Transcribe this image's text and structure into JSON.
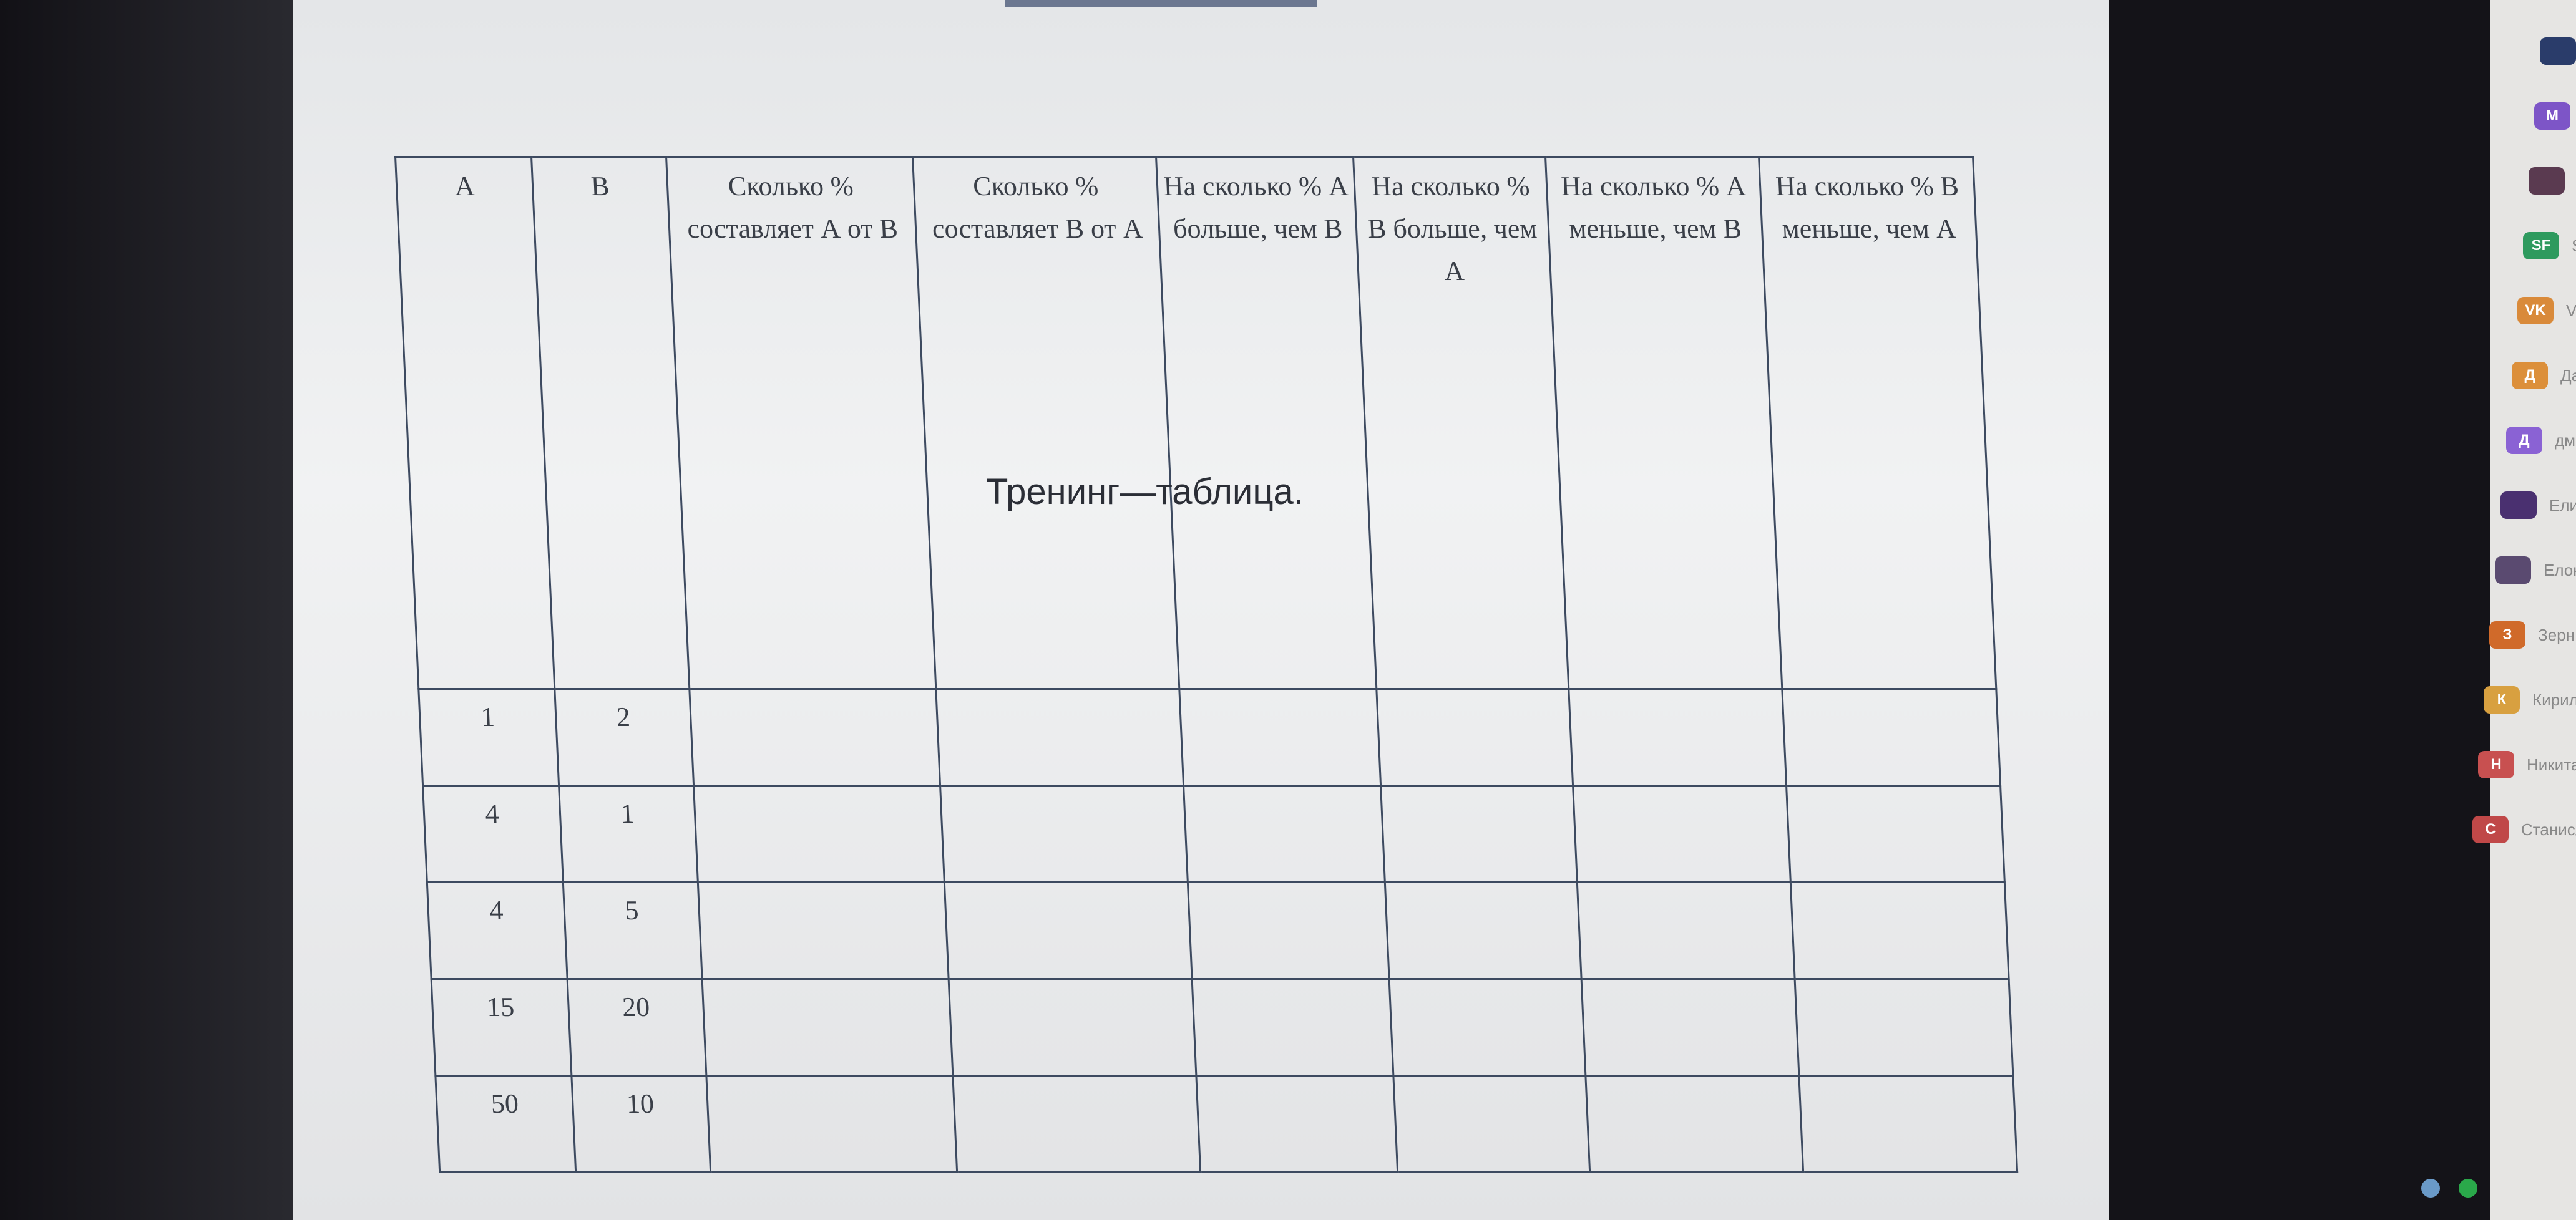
{
  "table": {
    "headers": [
      "A",
      "B",
      "Сколько % составляет А от В",
      "Сколько % составляет В от А",
      "На сколько % А больше, чем В",
      "На сколько % В больше, чем А",
      "На сколько % А меньше, чем В",
      "На сколько % В меньше, чем А"
    ],
    "rows": [
      [
        "1",
        "2"
      ],
      [
        "4",
        "1"
      ],
      [
        "4",
        "5"
      ],
      [
        "15",
        "20"
      ],
      [
        "50",
        "10"
      ]
    ]
  },
  "overlay_text": "Тренинг—таблица.",
  "participants": [
    {
      "initials": "",
      "name": "",
      "color": "#2a3c6a"
    },
    {
      "initials": "M",
      "name": "",
      "color": "#7d55c7"
    },
    {
      "initials": "",
      "name": "",
      "color": "#5a3a50"
    },
    {
      "initials": "SF",
      "name": "S",
      "color": "#2e9a5e"
    },
    {
      "initials": "VK",
      "name": "V",
      "color": "#d98a3a"
    },
    {
      "initials": "Д",
      "name": "Да",
      "color": "#dc8f3a"
    },
    {
      "initials": "Д",
      "name": "дм",
      "color": "#8a62d4"
    },
    {
      "initials": "",
      "name": "Ели",
      "color": "#4a3070"
    },
    {
      "initials": "",
      "name": "Елок",
      "color": "#5a4a70"
    },
    {
      "initials": "З",
      "name": "Зерн",
      "color": "#d06a2a"
    },
    {
      "initials": "К",
      "name": "Кирил",
      "color": "#d8a040"
    },
    {
      "initials": "Н",
      "name": "Никита",
      "color": "#c85050"
    },
    {
      "initials": "С",
      "name": "Станисл",
      "color": "#c04848"
    }
  ]
}
